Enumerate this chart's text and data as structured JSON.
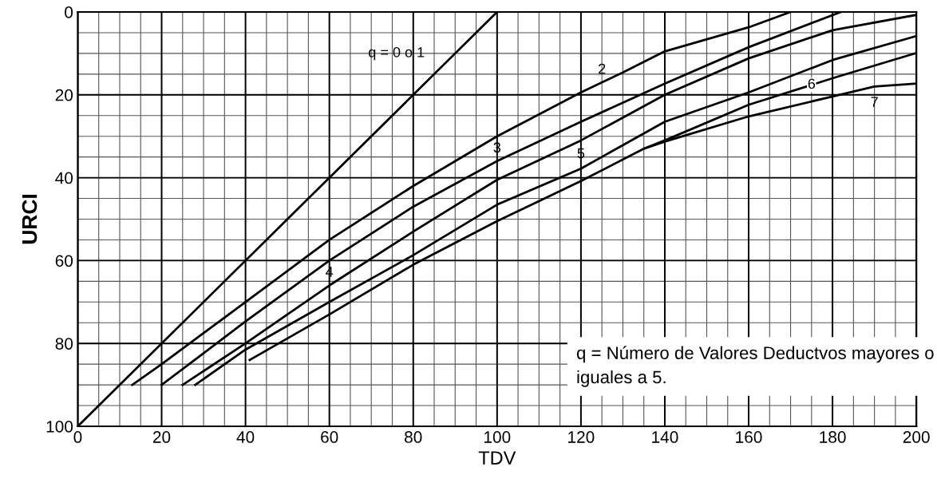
{
  "chart_data": {
    "type": "line",
    "xlabel": "TDV",
    "ylabel": "URCI",
    "xlim": [
      0,
      200
    ],
    "ylim": [
      100,
      0
    ],
    "xticks": [
      0,
      20,
      40,
      60,
      80,
      100,
      120,
      140,
      160,
      180,
      200
    ],
    "yticks": [
      0,
      20,
      40,
      60,
      80,
      100
    ],
    "grid": true,
    "legend": false,
    "marker": "none",
    "line_style": "solid",
    "series": [
      {
        "name": "q = 0 o 1",
        "color": "#000000",
        "x": [
          0,
          100
        ],
        "values": [
          100,
          0
        ]
      },
      {
        "name": "2",
        "color": "#000000",
        "x": [
          13,
          20,
          40,
          60,
          80,
          100,
          120,
          130,
          140,
          160,
          170
        ],
        "values": [
          90,
          85,
          70,
          55,
          42,
          30,
          19.4,
          14.6,
          9.5,
          3.7,
          0
        ]
      },
      {
        "name": "3",
        "color": "#000000",
        "x": [
          20,
          40,
          60,
          80,
          100,
          120,
          140,
          160,
          182
        ],
        "values": [
          90,
          74.7,
          60,
          47,
          36,
          26.5,
          17.3,
          8.5,
          0
        ]
      },
      {
        "name": "4",
        "color": "#000000",
        "x": [
          25,
          40,
          60,
          80,
          100,
          120,
          140,
          160,
          180,
          200
        ],
        "values": [
          90,
          80,
          66,
          53,
          40.5,
          31,
          20,
          11.2,
          4.4,
          0.7
        ]
      },
      {
        "name": "5",
        "color": "#000000",
        "x": [
          28,
          40,
          60,
          80,
          100,
          120,
          140,
          160,
          180,
          200
        ],
        "values": [
          90,
          81.5,
          70,
          58.7,
          46.5,
          37.8,
          26.5,
          19.4,
          11.6,
          5.8
        ]
      },
      {
        "name": "6",
        "color": "#000000",
        "x": [
          41,
          60,
          80,
          100,
          120,
          135,
          140,
          160,
          180,
          200
        ],
        "values": [
          84,
          73,
          61,
          50.5,
          40.8,
          33,
          31,
          22.4,
          16,
          9.9
        ]
      },
      {
        "name": "7",
        "color": "#000000",
        "x": [
          135,
          140,
          160,
          180,
          190,
          200
        ],
        "values": [
          33,
          31.3,
          25.2,
          20.4,
          18,
          17.3
        ]
      }
    ],
    "annotations": [
      "q = Número de Valores Deductvos mayores o iguales a 5."
    ]
  }
}
